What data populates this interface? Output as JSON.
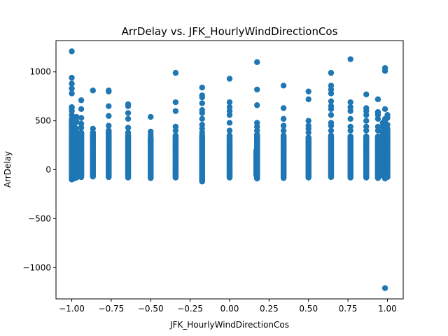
{
  "chart_data": {
    "type": "scatter",
    "title": "ArrDelay vs. JFK_HourlyWindDirectionCos",
    "xlabel": "JFK_HourlyWindDirectionCos",
    "ylabel": "ArrDelay",
    "xlim": [
      -1.1,
      1.1
    ],
    "ylim": [
      -1320,
      1320
    ],
    "xticks": [
      -1.0,
      -0.75,
      -0.5,
      -0.25,
      0.0,
      0.25,
      0.5,
      0.75,
      1.0
    ],
    "xtick_labels": [
      "−1.00",
      "−0.75",
      "−0.50",
      "−0.25",
      "0.00",
      "0.25",
      "0.50",
      "0.75",
      "1.00"
    ],
    "yticks": [
      -1000,
      -500,
      0,
      500,
      1000
    ],
    "ytick_labels": [
      "−1000",
      "−500",
      "0",
      "500",
      "1000"
    ],
    "marker_color": "#1f77b4",
    "columns": [
      {
        "x": -1.0,
        "min": -100,
        "max": 510,
        "outliers": [
          520,
          560,
          600,
          630,
          640,
          780,
          830,
          880,
          940,
          1210
        ]
      },
      {
        "x": -0.985,
        "min": -90,
        "max": 470,
        "outliers": []
      },
      {
        "x": -0.97,
        "min": -80,
        "max": 380,
        "outliers": [
          420,
          490,
          540
        ]
      },
      {
        "x": -0.94,
        "min": -75,
        "max": 380,
        "outliers": [
          430,
          470,
          530,
          620,
          710
        ]
      },
      {
        "x": -0.866,
        "min": -70,
        "max": 380,
        "outliers": [
          420,
          810
        ]
      },
      {
        "x": -0.766,
        "min": -75,
        "max": 400,
        "outliers": [
          450,
          550,
          650,
          800,
          810
        ]
      },
      {
        "x": -0.643,
        "min": -80,
        "max": 350,
        "outliers": [
          380,
          430,
          520,
          580,
          650,
          670
        ]
      },
      {
        "x": -0.5,
        "min": -85,
        "max": 330,
        "outliers": [
          360,
          390,
          540
        ]
      },
      {
        "x": -0.342,
        "min": -80,
        "max": 350,
        "outliers": [
          400,
          440,
          600,
          690,
          990
        ]
      },
      {
        "x": -0.174,
        "min": -120,
        "max": 350,
        "outliers": [
          380,
          420,
          460,
          520,
          580,
          610,
          680,
          740,
          760,
          840
        ]
      },
      {
        "x": 0.0,
        "min": -80,
        "max": 350,
        "outliers": [
          400,
          480,
          560,
          600,
          640,
          690,
          930
        ]
      },
      {
        "x": 0.17,
        "min": -60,
        "max": 200,
        "outliers": [
          20,
          0
        ]
      },
      {
        "x": 0.174,
        "min": -90,
        "max": 360,
        "outliers": [
          400,
          440,
          480,
          660,
          820,
          1100
        ]
      },
      {
        "x": 0.342,
        "min": -85,
        "max": 350,
        "outliers": [
          400,
          450,
          520,
          630,
          860
        ]
      },
      {
        "x": 0.5,
        "min": -80,
        "max": 330,
        "outliers": [
          380,
          420,
          450,
          500,
          720,
          800
        ]
      },
      {
        "x": 0.643,
        "min": -75,
        "max": 350,
        "outliers": [
          400,
          450,
          480,
          560,
          620,
          650,
          700,
          780,
          820,
          860,
          990
        ]
      },
      {
        "x": 0.766,
        "min": -80,
        "max": 340,
        "outliers": [
          400,
          440,
          520,
          600,
          640,
          690,
          1130
        ]
      },
      {
        "x": 0.866,
        "min": -80,
        "max": 340,
        "outliers": [
          400,
          440,
          500,
          560,
          600,
          630,
          770
        ]
      },
      {
        "x": 0.94,
        "min": -85,
        "max": 340,
        "outliers": [
          400,
          440,
          520,
          560,
          580,
          590,
          720
        ]
      },
      {
        "x": 0.97,
        "min": -60,
        "max": 400,
        "outliers": [
          440,
          480
        ]
      },
      {
        "x": 0.985,
        "min": -90,
        "max": 420,
        "outliers": [
          460,
          500,
          520,
          620,
          1010,
          1040,
          -1210
        ]
      },
      {
        "x": 1.0,
        "min": -75,
        "max": 420,
        "outliers": [
          460,
          530,
          560
        ]
      }
    ]
  }
}
